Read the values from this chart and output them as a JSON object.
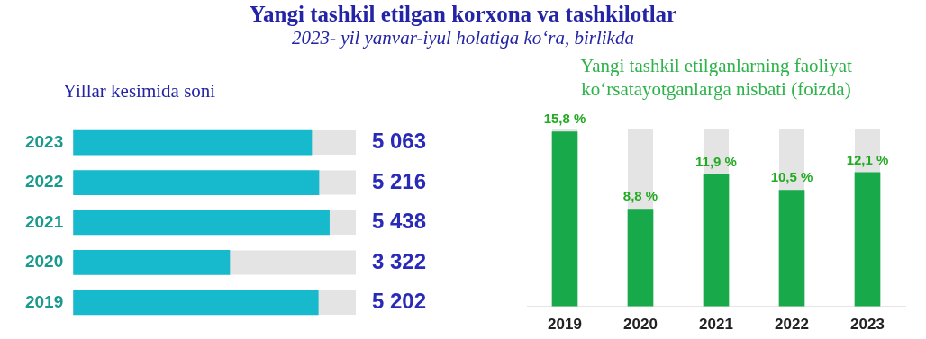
{
  "chart_data": [
    {
      "type": "other",
      "title": "Yangi tashkil etilgan korxona va tashkilotlar",
      "subtitle": "2023- yil yanvar-iyul holatiga ko‘ra, birlikda"
    },
    {
      "type": "bar",
      "title": "Yillar kesimida soni",
      "orientation": "horizontal",
      "categories": [
        "2023",
        "2022",
        "2021",
        "2020",
        "2019"
      ],
      "values": [
        5063,
        5216,
        5438,
        3322,
        5202
      ],
      "value_labels": [
        "5 063",
        "5 216",
        "5 438",
        "3 322",
        "5 202"
      ],
      "color": "#17b9cc",
      "tick_labels": "y"
    },
    {
      "type": "bar",
      "title": "Yangi tashkil etilganlarning faoliyat ko‘rsatayotganlarga nisbati (foizda)",
      "categories": [
        "2019",
        "2020",
        "2021",
        "2022",
        "2023"
      ],
      "values": [
        15.8,
        8.8,
        11.9,
        10.5,
        12.1
      ],
      "value_labels": [
        "15,8 %",
        "8,8 %",
        "11,9 %",
        "10,5 %",
        "12,1 %"
      ],
      "color": "#17a94a",
      "tick_labels": "x"
    }
  ]
}
